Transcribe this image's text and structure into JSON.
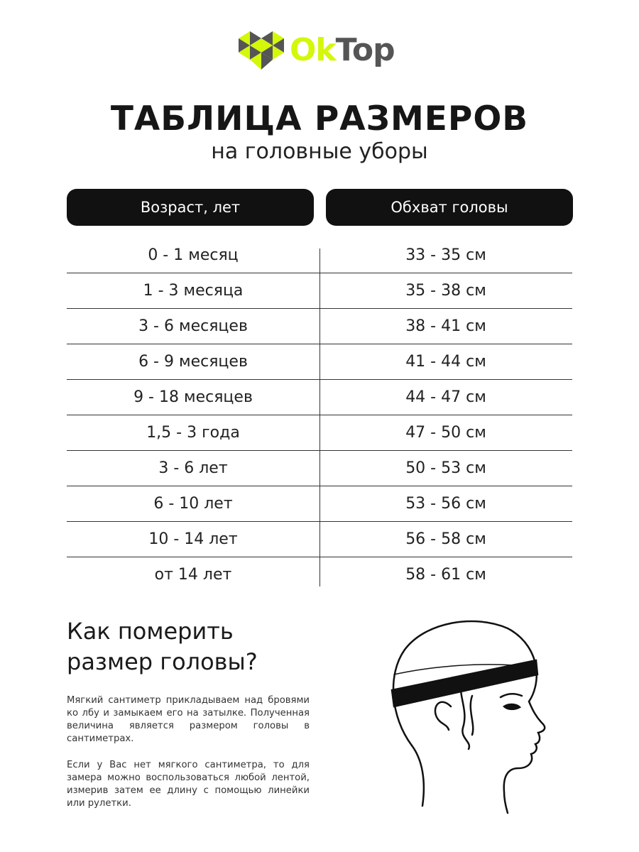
{
  "brand": {
    "logo_part1": "Ok",
    "logo_part2": "Top",
    "colors": {
      "lime": "#d4f70a",
      "gray": "#555555"
    }
  },
  "header": {
    "title": "ТАБЛИЦА РАЗМЕРОВ",
    "subtitle": "на головные уборы"
  },
  "table": {
    "columns": [
      "Возраст, лет",
      "Обхват головы"
    ],
    "rows": [
      [
        "0 - 1 месяц",
        "33 - 35 см"
      ],
      [
        "1 - 3 месяца",
        "35 - 38 см"
      ],
      [
        "3 - 6 месяцев",
        "38 - 41 см"
      ],
      [
        "6 - 9 месяцев",
        "41 - 44 см"
      ],
      [
        "9 - 18 месяцев",
        "44 - 47 см"
      ],
      [
        "1,5 - 3 года",
        "47 - 50 см"
      ],
      [
        "3 - 6 лет",
        "50 - 53 см"
      ],
      [
        "6 - 10 лет",
        "53 - 56 см"
      ],
      [
        "10 - 14 лет",
        "56 - 58 см"
      ],
      [
        "от 14 лет",
        "58 - 61 см"
      ]
    ]
  },
  "howto": {
    "heading_line1": "Как померить",
    "heading_line2": "размер головы?",
    "paragraph1": "Мягкий сантиметр прикладываем над бровями ко лбу и замыкаем его на затылке. Полученная величина является размером головы в сантиметрах.",
    "paragraph2": "Если у Вас нет мягкого сантиметра, то для замера можно воспользоваться любой лентой, измерив затем ее длину с помощью линейки или рулетки."
  }
}
